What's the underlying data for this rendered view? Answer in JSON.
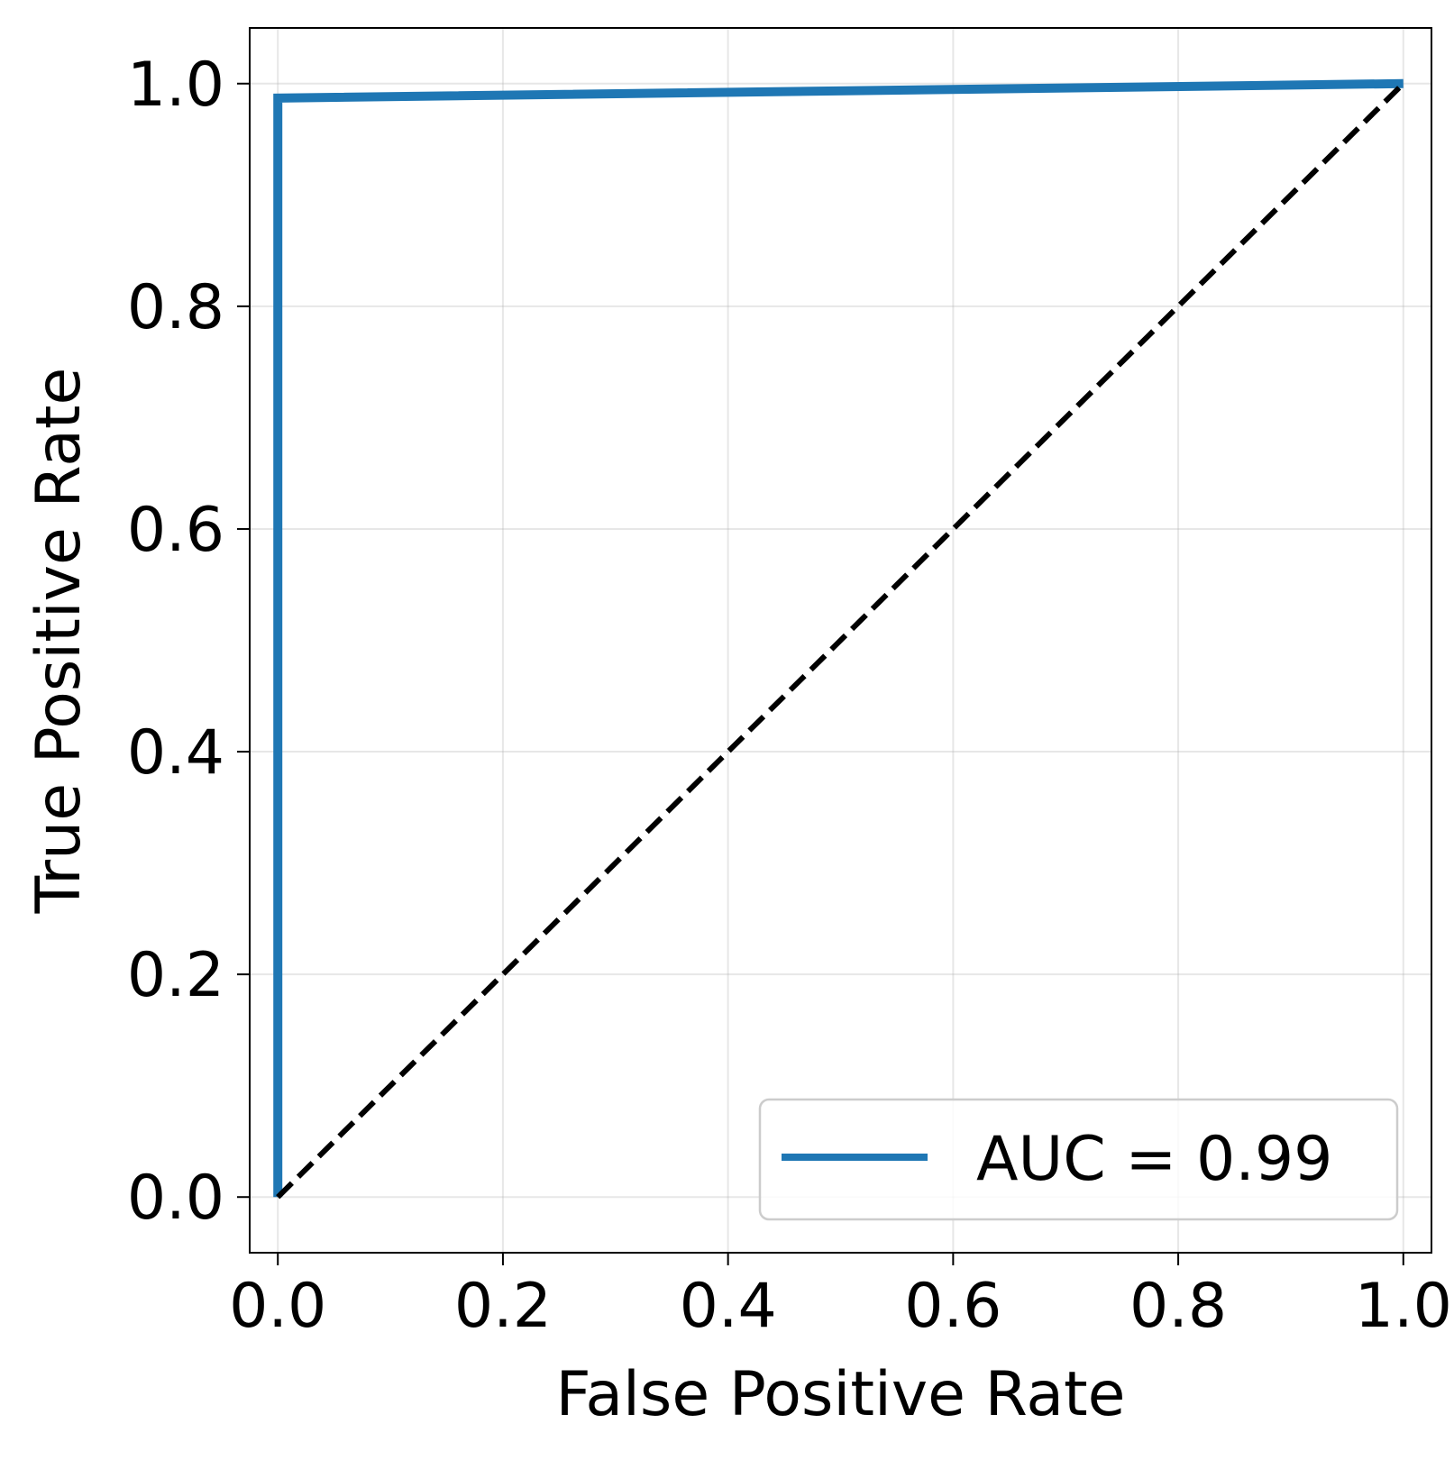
{
  "chart_data": {
    "type": "line",
    "xlabel": "False Positive Rate",
    "ylabel": "True Positive Rate",
    "xlim": [
      -0.025,
      1.025
    ],
    "ylim": [
      -0.05,
      1.05
    ],
    "xticks": [
      0.0,
      0.2,
      0.4,
      0.6,
      0.8,
      1.0
    ],
    "xtick_labels": [
      "0.0",
      "0.2",
      "0.4",
      "0.6",
      "0.8",
      "1.0"
    ],
    "yticks": [
      0.0,
      0.2,
      0.4,
      0.6,
      0.8,
      1.0
    ],
    "ytick_labels": [
      "0.0",
      "0.2",
      "0.4",
      "0.6",
      "0.8",
      "1.0"
    ],
    "grid": true,
    "legend_position": "lower-right",
    "series": [
      {
        "name": "AUC = 0.99",
        "color": "#1f77b4",
        "style": "solid",
        "x": [
          0.0,
          0.0,
          1.0
        ],
        "y": [
          0.0,
          0.987,
          1.0
        ]
      },
      {
        "color": "#000000",
        "style": "dashed",
        "x": [
          0.0,
          1.0
        ],
        "y": [
          0.0,
          1.0
        ]
      }
    ]
  }
}
